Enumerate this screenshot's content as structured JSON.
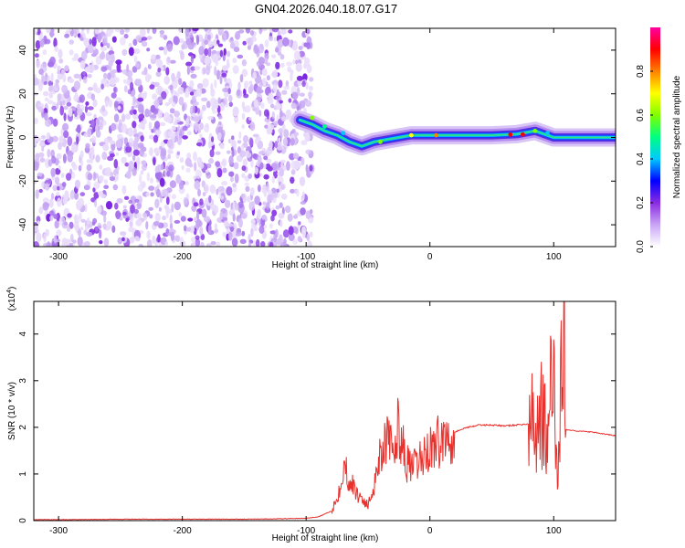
{
  "title": "GN04.2026.040.18.07.G17",
  "chart_data": [
    {
      "type": "heatmap",
      "xlabel": "Height of straight line (km)",
      "ylabel": "Frequency (Hz)",
      "xlim": [
        -320,
        150
      ],
      "ylim": [
        -50,
        50
      ],
      "x_ticks": [
        -300,
        -200,
        -100,
        0,
        100
      ],
      "y_ticks": [
        -40,
        -20,
        0,
        20,
        40
      ],
      "colorbar": {
        "label": "Normalized spectral amplitude",
        "range": [
          0,
          1
        ],
        "ticks": [
          "0.0",
          "0.2",
          "0.4",
          "0.6",
          "0.8"
        ],
        "colors": [
          "#ffffff",
          "#c9a5f5",
          "#8a2be2",
          "#0000ff",
          "#00c8ff",
          "#00ff80",
          "#80ff00",
          "#ffff00",
          "#ff8000",
          "#ff0000",
          "#ff00a0"
        ]
      },
      "noise_region_x": [
        -320,
        -100
      ],
      "signal_track": {
        "x": [
          -105,
          -95,
          -85,
          -75,
          -65,
          -55,
          -45,
          -35,
          -25,
          -15,
          -5,
          5,
          15,
          30,
          50,
          70,
          85,
          95,
          100,
          110,
          130,
          150
        ],
        "freq": [
          8,
          6,
          3,
          1,
          -2,
          -4,
          -2,
          -1,
          0,
          1,
          1,
          1,
          1,
          1,
          1,
          1.5,
          3,
          1,
          0,
          0,
          0,
          0
        ]
      }
    },
    {
      "type": "line",
      "xlabel": "Height of straight line (km)",
      "ylabel": "SNR (10 * v/v)",
      "y_multiplier": "(x10",
      "y_multiplier_exp": "4",
      "xlim": [
        -320,
        150
      ],
      "ylim": [
        0,
        4.7
      ],
      "x_ticks": [
        -300,
        -200,
        -100,
        0,
        100
      ],
      "y_ticks": [
        0,
        1,
        2,
        3,
        4
      ],
      "series_color": "#e8302c",
      "series": [
        {
          "x": [
            -320,
            -300,
            -250,
            -200,
            -150,
            -120,
            -100,
            -90,
            -80,
            -75,
            -70,
            -65,
            -60,
            -55,
            -50,
            -45,
            -40,
            -35,
            -30,
            -25,
            -20,
            -15,
            -10,
            -5,
            0,
            10,
            20,
            30,
            40,
            50,
            60,
            70,
            80,
            85,
            90,
            95,
            100,
            103,
            106,
            108,
            110,
            120,
            130,
            140,
            150
          ],
          "values": [
            0.02,
            0.02,
            0.03,
            0.03,
            0.03,
            0.04,
            0.05,
            0.08,
            0.2,
            0.45,
            1.2,
            0.9,
            0.6,
            0.5,
            0.3,
            0.8,
            1.5,
            1.8,
            1.4,
            2.1,
            1.3,
            1.1,
            1.2,
            1.4,
            1.55,
            1.75,
            1.9,
            2.0,
            2.05,
            2.05,
            2.03,
            2.05,
            2.07,
            1.9,
            2.6,
            1.5,
            3.5,
            0.5,
            3.8,
            4.6,
            1.95,
            1.92,
            1.9,
            1.86,
            1.82
          ]
        }
      ]
    }
  ]
}
